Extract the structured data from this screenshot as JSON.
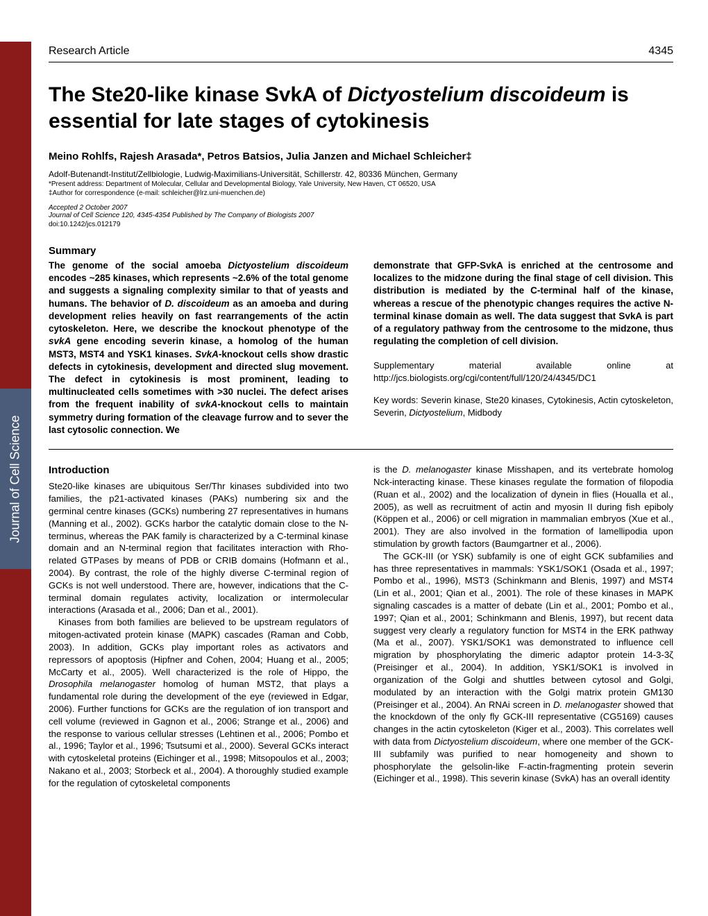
{
  "page_number": "4345",
  "article_type": "Research Article",
  "title_part1": "The Ste20-like kinase SvkA of ",
  "title_italic1": "Dictyostelium discoideum",
  "title_part2": " is essential for late stages of cytokinesis",
  "authors": "Meino Rohlfs, Rajesh Arasada*, Petros Batsios, Julia Janzen and Michael Schleicher‡",
  "affiliation": "Adolf-Butenandt-Institut/Zellbiologie, Ludwig-Maximilians-Universität, Schillerstr. 42, 80336 München, Germany",
  "note1": "*Present address: Department of Molecular, Cellular and Developmental Biology, Yale University, New Haven, CT 06520, USA",
  "note2": "‡Author for correspondence (e-mail: schleicher@lrz.uni-muenchen.de)",
  "accepted": "Accepted 2 October 2007",
  "journal_info": "Journal of Cell Science 120, 4345-4354 Published by The Company of Biologists 2007",
  "doi": "doi:10.1242/jcs.012179",
  "side_tab": "Journal of Cell Science",
  "summary_heading": "Summary",
  "summary_left": "The genome of the social amoeba <span class=\"italic\">Dictyostelium discoideum</span> encodes ~285 kinases, which represents ~2.6% of the total genome and suggests a signaling complexity similar to that of yeasts and humans. The behavior of <span class=\"italic\">D. discoideum</span> as an amoeba and during development relies heavily on fast rearrangements of the actin cytoskeleton. Here, we describe the knockout phenotype of the <span class=\"italic\">svkA</span> gene encoding severin kinase, a homolog of the human MST3, MST4 and YSK1 kinases. <span class=\"italic\">SvkA</span>-knockout cells show drastic defects in cytokinesis, development and directed slug movement. The defect in cytokinesis is most prominent, leading to multinucleated cells sometimes with >30 nuclei. The defect arises from the frequent inability of <span class=\"italic\">svkA</span>-knockout cells to maintain symmetry during formation of the cleavage furrow and to sever the last cytosolic connection. We",
  "summary_right": "demonstrate that GFP-SvkA is enriched at the centrosome and localizes to the midzone during the final stage of cell division. This distribution is mediated by the C-terminal half of the kinase, whereas a rescue of the phenotypic changes requires the active N-terminal kinase domain as well. The data suggest that SvkA is part of a regulatory pathway from the centrosome to the midzone, thus regulating the completion of cell division.",
  "supplementary": "Supplementary material available online at http://jcs.biologists.org/cgi/content/full/120/24/4345/DC1",
  "keywords": "Key words: Severin kinase, Ste20 kinases, Cytokinesis, Actin cytoskeleton, Severin, <span class=\"italic\">Dictyostelium</span>, Midbody",
  "intro_heading": "Introduction",
  "intro_left_p1": "Ste20-like kinases are ubiquitous Ser/Thr kinases subdivided into two families, the p21-activated kinases (PAKs) numbering six and the germinal centre kinases (GCKs) numbering 27 representatives in humans (Manning et al., 2002). GCKs harbor the catalytic domain close to the N-terminus, whereas the PAK family is characterized by a C-terminal kinase domain and an N-terminal region that facilitates interaction with Rho-related GTPases by means of PDB or CRIB domains (Hofmann et al., 2004). By contrast, the role of the highly diverse C-terminal region of GCKs is not well understood. There are, however, indications that the C-terminal domain regulates activity, localization or intermolecular interactions (Arasada et al., 2006; Dan et al., 2001).",
  "intro_left_p2": "Kinases from both families are believed to be upstream regulators of mitogen-activated protein kinase (MAPK) cascades (Raman and Cobb, 2003). In addition, GCKs play important roles as activators and repressors of apoptosis (Hipfner and Cohen, 2004; Huang et al., 2005; McCarty et al., 2005). Well characterized is the role of Hippo, the <span class=\"italic\">Drosophila melanogaster</span> homolog of human MST2, that plays a fundamental role during the development of the eye (reviewed in Edgar, 2006). Further functions for GCKs are the regulation of ion transport and cell volume (reviewed in Gagnon et al., 2006; Strange et al., 2006) and the response to various cellular stresses (Lehtinen et al., 2006; Pombo et al., 1996; Taylor et al., 1996; Tsutsumi et al., 2000). Several GCKs interact with cytoskeletal proteins (Eichinger et al., 1998; Mitsopoulos et al., 2003; Nakano et al., 2003; Storbeck et al., 2004). A thoroughly studied example for the regulation of cytoskeletal components",
  "intro_right_p1": "is the <span class=\"italic\">D. melanogaster</span> kinase Misshapen, and its vertebrate homolog Nck-interacting kinase. These kinases regulate the formation of filopodia (Ruan et al., 2002) and the localization of dynein in flies (Houalla et al., 2005), as well as recruitment of actin and myosin II during fish epiboly (Köppen et al., 2006) or cell migration in mammalian embryos (Xue et al., 2001). They are also involved in the formation of lamellipodia upon stimulation by growth factors (Baumgartner et al., 2006).",
  "intro_right_p2": "The GCK-III (or YSK) subfamily is one of eight GCK subfamilies and has three representatives in mammals: YSK1/SOK1 (Osada et al., 1997; Pombo et al., 1996), MST3 (Schinkmann and Blenis, 1997) and MST4 (Lin et al., 2001; Qian et al., 2001). The role of these kinases in MAPK signaling cascades is a matter of debate (Lin et al., 2001; Pombo et al., 1997; Qian et al., 2001; Schinkmann and Blenis, 1997), but recent data suggest very clearly a regulatory function for MST4 in the ERK pathway (Ma et al., 2007). YSK1/SOK1 was demonstrated to influence cell migration by phosphorylating the dimeric adaptor protein 14-3-3ζ (Preisinger et al., 2004). In addition, YSK1/SOK1 is involved in organization of the Golgi and shuttles between cytosol and Golgi, modulated by an interaction with the Golgi matrix protein GM130 (Preisinger et al., 2004). An RNAi screen in <span class=\"italic\">D. melanogaster</span> showed that the knockdown of the only fly GCK-III representative (CG5169) causes changes in the actin cytoskeleton (Kiger et al., 2003). This correlates well with data from <span class=\"italic\">Dictyostelium discoideum</span>, where one member of the GCK-III subfamily was purified to near homogeneity and shown to phosphorylate the gelsolin-like F-actin-fragmenting protein severin (Eichinger et al., 1998). This severin kinase (SvkA) has an overall identity",
  "colors": {
    "red_bar": "#8b1a1a",
    "side_tab": "#4a5c7a",
    "text": "#000000",
    "background": "#ffffff"
  }
}
